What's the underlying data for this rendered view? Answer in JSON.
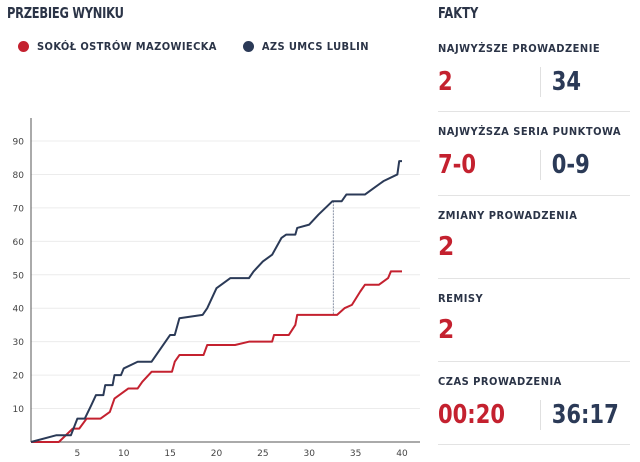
{
  "title": "PRZEBIEG WYNIKU",
  "legend": [
    {
      "name": "SOKÓŁ OSTRÓW MAZOWIECKA",
      "color": "#c4212f"
    },
    {
      "name": "AZS UMCS LUBLIN",
      "color": "#2b3a57"
    }
  ],
  "facts": {
    "title": "FAKTY",
    "largest_lead": {
      "label": "NAJWYŻSZE PROWADZENIE",
      "home": "2",
      "away": "34"
    },
    "best_run": {
      "label": "NAJWYŻSZA SERIA PUNKTOWA",
      "home": "7-0",
      "away": "0-9"
    },
    "lead_changes": {
      "label": "ZMIANY PROWADZENIA",
      "value": "2"
    },
    "ties": {
      "label": "REMISY",
      "value": "2"
    },
    "time_leading": {
      "label": "CZAS PROWADZENIA",
      "home": "00:20",
      "away": "36:17"
    }
  },
  "chart_data": {
    "type": "line",
    "xlim": [
      0,
      40
    ],
    "ylim": [
      0,
      95
    ],
    "xticks": [
      5,
      10,
      15,
      20,
      25,
      30,
      35,
      40
    ],
    "yticks": [
      10,
      20,
      30,
      40,
      50,
      60,
      70,
      80,
      90
    ],
    "grid": true,
    "series": [
      {
        "name": "SOKÓŁ OSTRÓW MAZOWIECKA",
        "color": "#c4212f",
        "points": [
          [
            0,
            0
          ],
          [
            3,
            0
          ],
          [
            4.5,
            4
          ],
          [
            5.2,
            4
          ],
          [
            6,
            7
          ],
          [
            7.5,
            7
          ],
          [
            8.5,
            9
          ],
          [
            9,
            13
          ],
          [
            10,
            15
          ],
          [
            10.5,
            16
          ],
          [
            11.5,
            16
          ],
          [
            12,
            18
          ],
          [
            13,
            21
          ],
          [
            15.2,
            21
          ],
          [
            15.5,
            24
          ],
          [
            16,
            26
          ],
          [
            18.6,
            26
          ],
          [
            19,
            29
          ],
          [
            22,
            29
          ],
          [
            23.5,
            30
          ],
          [
            26,
            30
          ],
          [
            26.2,
            32
          ],
          [
            27.8,
            32
          ],
          [
            28.5,
            35
          ],
          [
            28.7,
            38
          ],
          [
            33,
            38
          ],
          [
            33.8,
            40
          ],
          [
            34.6,
            41
          ],
          [
            35.5,
            45
          ],
          [
            36,
            47
          ],
          [
            37.5,
            47
          ],
          [
            38.5,
            49
          ],
          [
            38.8,
            51
          ],
          [
            40,
            51
          ]
        ]
      },
      {
        "name": "AZS UMCS LUBLIN",
        "color": "#2b3a57",
        "points": [
          [
            0,
            0
          ],
          [
            2.7,
            2
          ],
          [
            4.3,
            2
          ],
          [
            5,
            7
          ],
          [
            5.8,
            7
          ],
          [
            6.5,
            11
          ],
          [
            7,
            14
          ],
          [
            7.8,
            14
          ],
          [
            8,
            17
          ],
          [
            8.8,
            17
          ],
          [
            9,
            20
          ],
          [
            9.7,
            20
          ],
          [
            10,
            22
          ],
          [
            11.5,
            24
          ],
          [
            13,
            24
          ],
          [
            14,
            28
          ],
          [
            15,
            32
          ],
          [
            15.5,
            32
          ],
          [
            16,
            37
          ],
          [
            18.5,
            38
          ],
          [
            19,
            40
          ],
          [
            20,
            46
          ],
          [
            21.5,
            49
          ],
          [
            23.5,
            49
          ],
          [
            24,
            51
          ],
          [
            25,
            54
          ],
          [
            26,
            56
          ],
          [
            27,
            61
          ],
          [
            27.5,
            62
          ],
          [
            28.5,
            62
          ],
          [
            28.7,
            64
          ],
          [
            30,
            65
          ],
          [
            31,
            68
          ],
          [
            32.5,
            72
          ],
          [
            33.5,
            72
          ],
          [
            34,
            74
          ],
          [
            36,
            74
          ],
          [
            37,
            76
          ],
          [
            38,
            78
          ],
          [
            39.5,
            80
          ],
          [
            39.7,
            84
          ],
          [
            40,
            84
          ]
        ]
      }
    ],
    "annotation": {
      "type": "largest-lead",
      "x": 32.6,
      "from": 38,
      "to": 72
    }
  }
}
